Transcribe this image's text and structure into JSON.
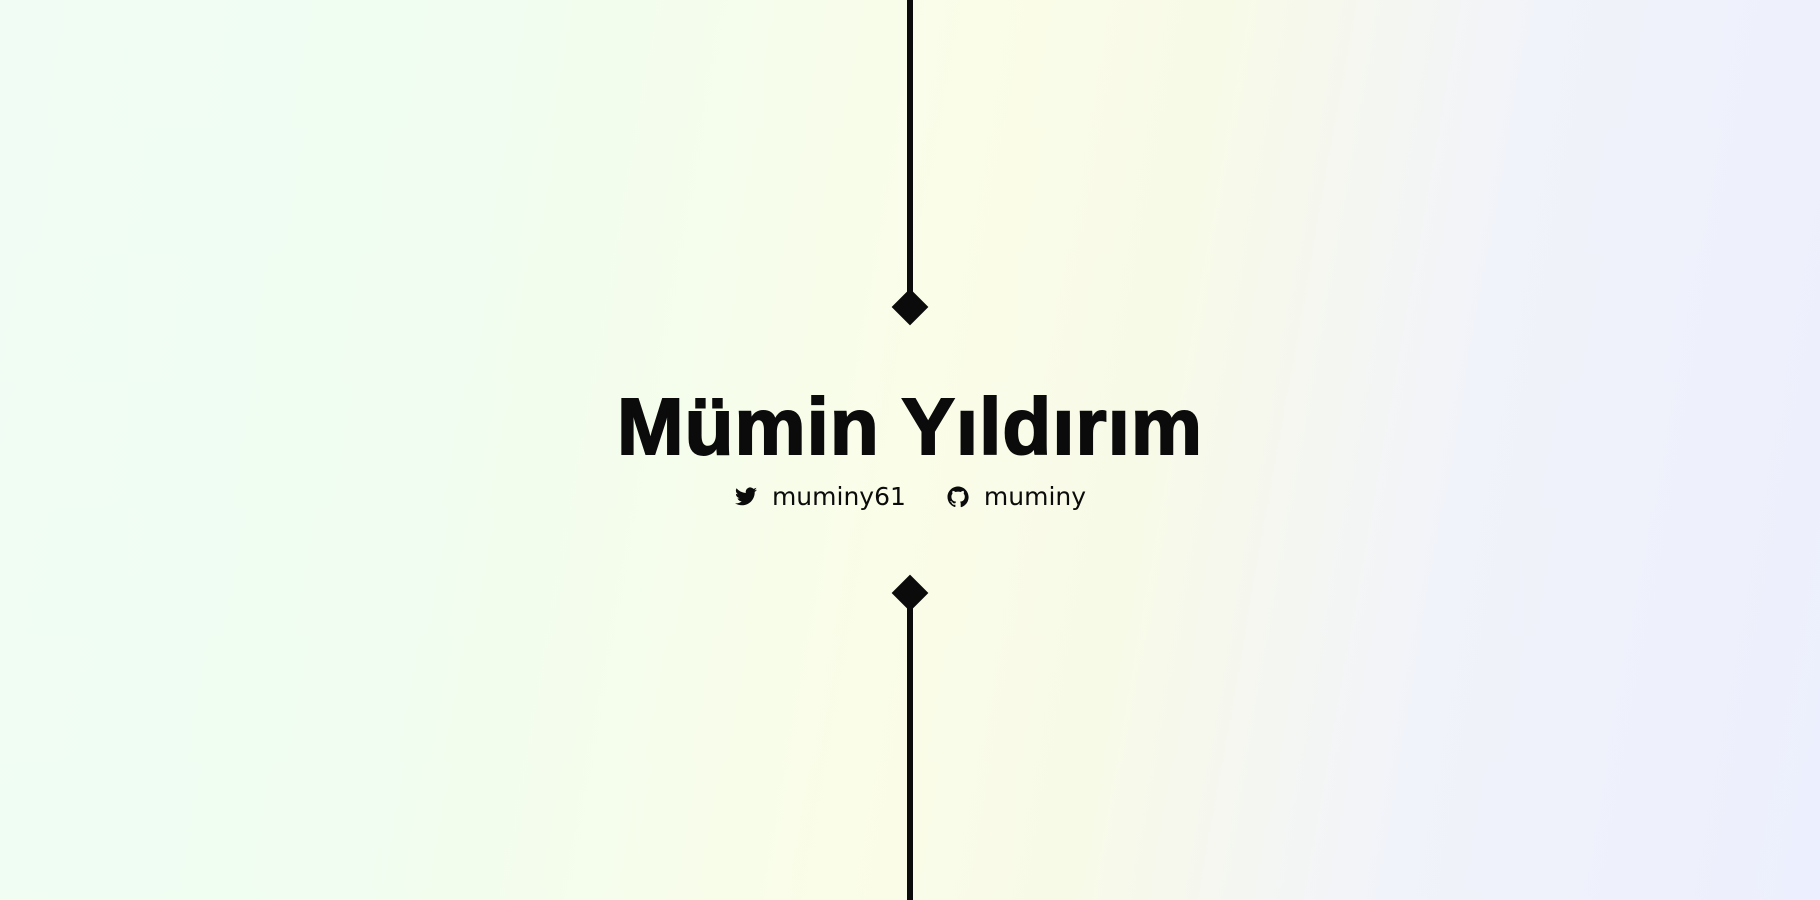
{
  "profile": {
    "name": "Mümin Yıldırım",
    "socials": [
      {
        "icon": "twitter-icon",
        "handle": "muminy61"
      },
      {
        "icon": "github-icon",
        "handle": "muminy"
      }
    ]
  },
  "colors": {
    "ink": "#0b0b0b",
    "background_left": "#f0fdf0",
    "background_middle": "#fafde8",
    "background_right": "#eceffd"
  }
}
